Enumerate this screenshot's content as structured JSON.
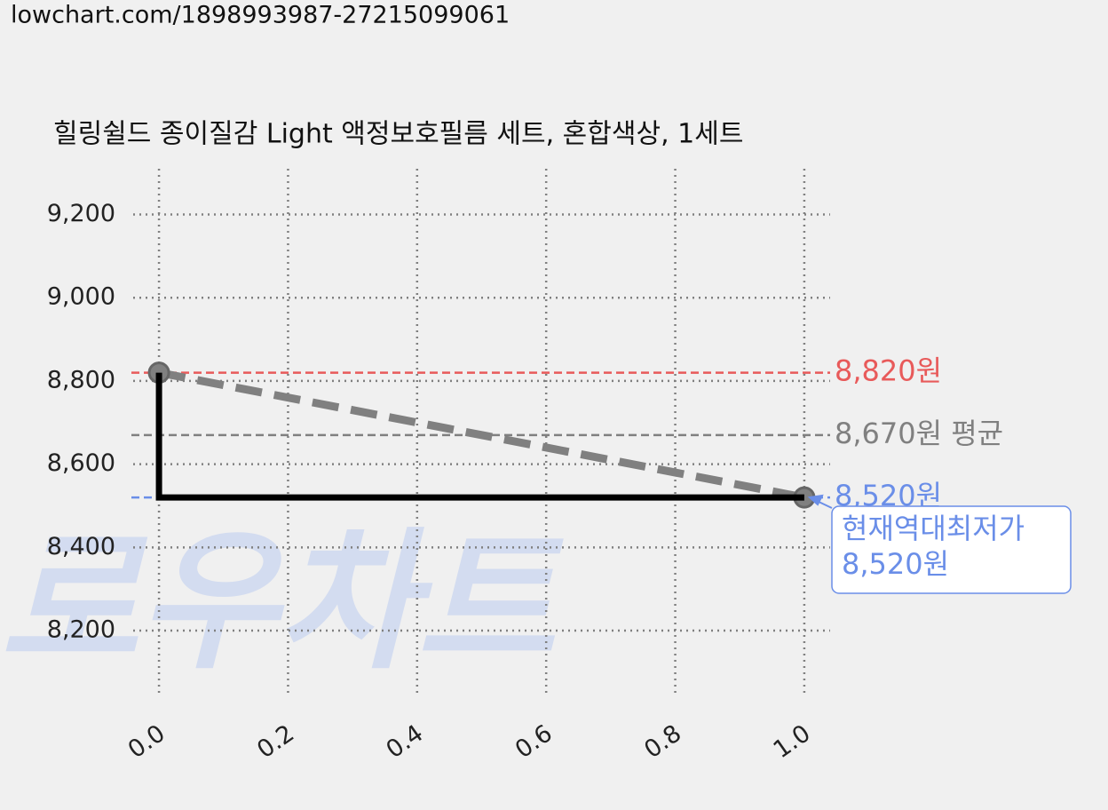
{
  "header": {
    "url": "lowchart.com/1898993987-27215099061"
  },
  "chart_data": {
    "type": "line",
    "title": "힐링쉴드 종이질감 Light 액정보호필름 세트, 혼합색상, 1세트",
    "watermark": "로우차트",
    "x": [
      0,
      1
    ],
    "series": [
      {
        "name": "price",
        "color": "#808080",
        "values": [
          8820,
          8520
        ],
        "style": "dashed",
        "markers": true
      },
      {
        "name": "lowest",
        "color": "#000000",
        "values": [
          8820,
          8520
        ],
        "style": "step-pre"
      }
    ],
    "hlines": [
      {
        "value": 8820,
        "label": "8,820원",
        "color": "#e85a5a"
      },
      {
        "value": 8670,
        "label": "8,670원 평균",
        "color": "#808080"
      },
      {
        "value": 8520,
        "label": "8,520원",
        "color": "#6a8ee8"
      }
    ],
    "annotation": {
      "lines": [
        "현재역대최저가",
        "8,520원"
      ],
      "color": "#6a8ee8"
    },
    "xlim": [
      -0.04,
      1.04
    ],
    "ylim": [
      8040,
      9310
    ],
    "xticks": [
      {
        "value": 0,
        "label": "0.0"
      },
      0.2,
      0.4,
      0.6,
      0.8,
      {
        "value": 1,
        "label": "1.0"
      }
    ],
    "yticks": [
      {
        "value": 8200,
        "label": "8,200"
      },
      {
        "value": 8400,
        "label": "8,400"
      },
      {
        "value": 8600,
        "label": "8,600"
      },
      {
        "value": 8800,
        "label": "8,800"
      },
      {
        "value": 9000,
        "label": "9,000"
      },
      {
        "value": 9200,
        "label": "9,200"
      }
    ],
    "grid": true
  }
}
